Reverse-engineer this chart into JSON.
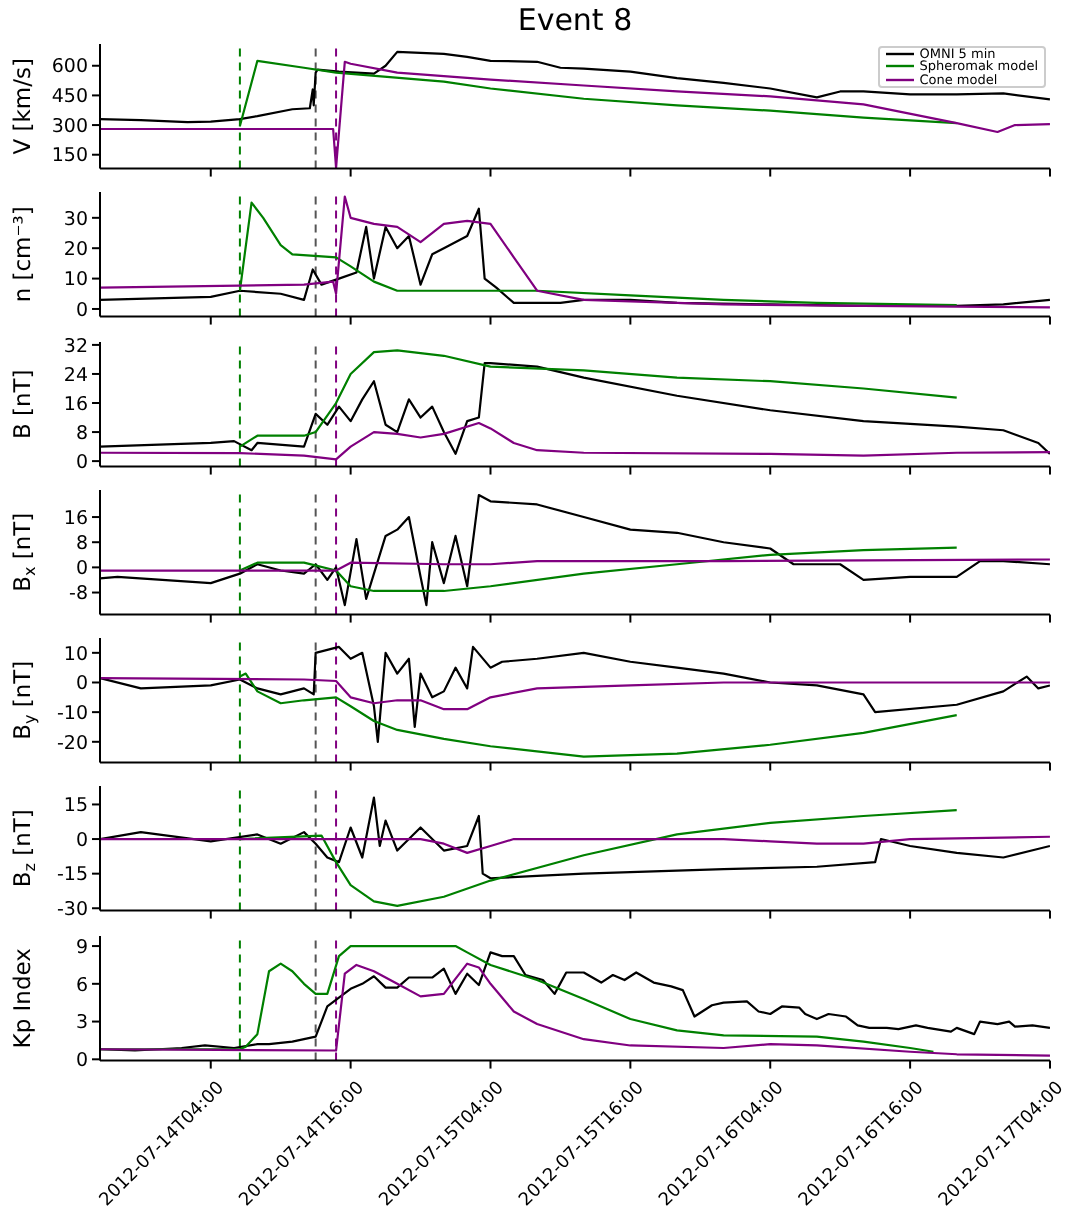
{
  "chart_data": [
    {
      "type": "line",
      "title": "Event 8",
      "ylabel": "V [km/s]",
      "legend": "top right",
      "tick_labels": "y",
      "xlim": [
        "2012-07-13T18:30",
        "2012-07-17T04:00"
      ],
      "xticks": [
        "2012-07-14T04:00",
        "2012-07-14T16:00",
        "2012-07-15T04:00",
        "2012-07-15T16:00",
        "2012-07-16T04:00",
        "2012-07-16T16:00",
        "2012-07-17T04:00"
      ],
      "ylim": [
        80,
        710
      ],
      "yticks": [
        150,
        300,
        450,
        600
      ],
      "ref_lines": [
        {
          "axis": "x",
          "value": "2012-07-14T06:30",
          "color": "#008000",
          "line_style": "dashed"
        },
        {
          "axis": "x",
          "value": "2012-07-14T13:00",
          "color": "#555555",
          "line_style": "dashed"
        },
        {
          "axis": "x",
          "value": "2012-07-14T14:45",
          "color": "#800080",
          "line_style": "dashed"
        }
      ],
      "series": [
        {
          "name": "OMNI 5 min",
          "color": "#000000",
          "x": [
            "2012-07-13T18:30",
            "2012-07-13T22:00",
            "2012-07-14T02:00",
            "2012-07-14T04:00",
            "2012-07-14T06:30",
            "2012-07-14T08:00",
            "2012-07-14T11:00",
            "2012-07-14T12:30",
            "2012-07-14T12:45",
            "2012-07-14T12:50",
            "2012-07-14T13:00",
            "2012-07-14T13:10",
            "2012-07-14T15:00",
            "2012-07-14T18:00",
            "2012-07-14T19:00",
            "2012-07-14T20:00",
            "2012-07-14T22:00",
            "2012-07-15T00:00",
            "2012-07-15T02:00",
            "2012-07-15T04:00",
            "2012-07-15T08:00",
            "2012-07-15T10:00",
            "2012-07-15T12:00",
            "2012-07-15T16:00",
            "2012-07-15T20:00",
            "2012-07-16T00:00",
            "2012-07-16T04:00",
            "2012-07-16T08:00",
            "2012-07-16T10:00",
            "2012-07-16T12:00",
            "2012-07-16T16:00",
            "2012-07-16T20:00",
            "2012-07-17T00:00",
            "2012-07-17T04:00"
          ],
          "values": [
            330,
            325,
            315,
            317,
            330,
            345,
            380,
            385,
            480,
            400,
            565,
            580,
            570,
            560,
            600,
            670,
            665,
            660,
            645,
            625,
            620,
            590,
            585,
            570,
            537,
            513,
            485,
            440,
            470,
            470,
            455,
            455,
            460,
            430
          ]
        },
        {
          "name": "Spheromak model",
          "color": "#008000",
          "x": [
            "2012-07-14T06:30",
            "2012-07-14T08:00",
            "2012-07-14T12:00",
            "2012-07-14T14:45",
            "2012-07-15T00:00",
            "2012-07-15T04:00",
            "2012-07-15T12:00",
            "2012-07-15T20:00",
            "2012-07-16T04:00",
            "2012-07-16T12:00",
            "2012-07-16T20:00"
          ],
          "values": [
            295,
            625,
            590,
            565,
            520,
            485,
            433,
            400,
            373,
            338,
            310
          ]
        },
        {
          "name": "Cone model",
          "color": "#800080",
          "x": [
            "2012-07-13T18:30",
            "2012-07-14T14:30",
            "2012-07-14T14:45",
            "2012-07-14T15:30",
            "2012-07-14T16:00",
            "2012-07-14T20:00",
            "2012-07-15T00:00",
            "2012-07-15T04:00",
            "2012-07-15T12:00",
            "2012-07-15T20:00",
            "2012-07-16T04:00",
            "2012-07-16T12:00",
            "2012-07-16T20:00",
            "2012-07-16T23:30",
            "2012-07-17T01:00",
            "2012-07-17T04:00"
          ],
          "values": [
            280,
            280,
            85,
            620,
            610,
            565,
            548,
            530,
            500,
            470,
            445,
            405,
            310,
            265,
            300,
            305
          ]
        }
      ]
    },
    {
      "type": "line",
      "ylabel": "n [cm⁻³]",
      "tick_labels": "y",
      "xlim": [
        "2012-07-13T18:30",
        "2012-07-17T04:00"
      ],
      "xticks": [
        "2012-07-14T04:00",
        "2012-07-14T16:00",
        "2012-07-15T04:00",
        "2012-07-15T16:00",
        "2012-07-16T04:00",
        "2012-07-16T16:00",
        "2012-07-17T04:00"
      ],
      "ylim": [
        -2.5,
        38.5
      ],
      "yticks": [
        0,
        10,
        20,
        30
      ],
      "ref_lines": [
        {
          "axis": "x",
          "value": "2012-07-14T06:30",
          "color": "#008000",
          "line_style": "dashed"
        },
        {
          "axis": "x",
          "value": "2012-07-14T13:00",
          "color": "#555555",
          "line_style": "dashed"
        },
        {
          "axis": "x",
          "value": "2012-07-14T14:45",
          "color": "#800080",
          "line_style": "dashed"
        }
      ],
      "series": [
        {
          "color": "#000000",
          "x": [
            "2012-07-13T18:30",
            "2012-07-14T04:00",
            "2012-07-14T06:30",
            "2012-07-14T10:00",
            "2012-07-14T12:00",
            "2012-07-14T12:45",
            "2012-07-14T13:30",
            "2012-07-14T15:00",
            "2012-07-14T16:30",
            "2012-07-14T17:20",
            "2012-07-14T18:00",
            "2012-07-14T19:00",
            "2012-07-14T20:00",
            "2012-07-14T21:00",
            "2012-07-14T22:00",
            "2012-07-14T23:00",
            "2012-07-15T00:00",
            "2012-07-15T02:00",
            "2012-07-15T03:00",
            "2012-07-15T03:30",
            "2012-07-15T04:30",
            "2012-07-15T06:00",
            "2012-07-15T10:00",
            "2012-07-15T12:00",
            "2012-07-15T16:00",
            "2012-07-15T20:00",
            "2012-07-16T04:00",
            "2012-07-16T12:00",
            "2012-07-16T20:00",
            "2012-07-17T00:00",
            "2012-07-17T04:00"
          ],
          "values": [
            3,
            4,
            6,
            5,
            3,
            13,
            8,
            10,
            12,
            27,
            10,
            27,
            20,
            24,
            8,
            18,
            20,
            24,
            33,
            10,
            7,
            2,
            2,
            3,
            3,
            2,
            1.5,
            1,
            1,
            1.5,
            3
          ]
        },
        {
          "color": "#008000",
          "x": [
            "2012-07-14T06:30",
            "2012-07-14T07:30",
            "2012-07-14T08:30",
            "2012-07-14T10:00",
            "2012-07-14T11:00",
            "2012-07-14T14:45",
            "2012-07-14T16:00",
            "2012-07-14T18:00",
            "2012-07-14T20:00",
            "2012-07-15T00:00",
            "2012-07-15T08:00",
            "2012-07-15T16:00",
            "2012-07-16T00:00",
            "2012-07-16T08:00",
            "2012-07-16T16:00",
            "2012-07-16T20:00"
          ],
          "values": [
            6,
            35,
            30,
            21,
            18,
            17,
            14,
            9,
            6,
            6,
            6,
            4.5,
            3,
            2,
            1.5,
            1.3
          ]
        },
        {
          "color": "#800080",
          "x": [
            "2012-07-13T18:30",
            "2012-07-14T12:00",
            "2012-07-14T14:30",
            "2012-07-14T14:45",
            "2012-07-14T15:30",
            "2012-07-14T16:00",
            "2012-07-14T18:00",
            "2012-07-14T20:00",
            "2012-07-14T22:00",
            "2012-07-15T00:00",
            "2012-07-15T02:00",
            "2012-07-15T04:00",
            "2012-07-15T06:00",
            "2012-07-15T08:00",
            "2012-07-15T12:00",
            "2012-07-15T16:00",
            "2012-07-16T00:00",
            "2012-07-16T12:00",
            "2012-07-17T04:00"
          ],
          "values": [
            7,
            8,
            9,
            5,
            37,
            30,
            28,
            27,
            22,
            28,
            29,
            28,
            17,
            6,
            3,
            2.5,
            1.5,
            1,
            0.5
          ]
        }
      ]
    },
    {
      "type": "line",
      "ylabel": "B [nT]",
      "tick_labels": "y",
      "xlim": [
        "2012-07-13T18:30",
        "2012-07-17T04:00"
      ],
      "xticks": [
        "2012-07-14T04:00",
        "2012-07-14T16:00",
        "2012-07-15T04:00",
        "2012-07-15T16:00",
        "2012-07-16T04:00",
        "2012-07-16T16:00",
        "2012-07-17T04:00"
      ],
      "ylim": [
        -1.5,
        32.8
      ],
      "yticks": [
        0,
        8,
        16,
        24,
        32
      ],
      "ref_lines": [
        {
          "axis": "x",
          "value": "2012-07-14T06:30",
          "color": "#008000",
          "line_style": "dashed"
        },
        {
          "axis": "x",
          "value": "2012-07-14T13:00",
          "color": "#555555",
          "line_style": "dashed"
        },
        {
          "axis": "x",
          "value": "2012-07-14T14:45",
          "color": "#800080",
          "line_style": "dashed"
        }
      ],
      "series": [
        {
          "color": "#000000",
          "x": [
            "2012-07-13T18:30",
            "2012-07-14T04:00",
            "2012-07-14T06:00",
            "2012-07-14T07:30",
            "2012-07-14T08:00",
            "2012-07-14T12:00",
            "2012-07-14T13:00",
            "2012-07-14T14:00",
            "2012-07-14T15:00",
            "2012-07-14T16:00",
            "2012-07-14T17:00",
            "2012-07-14T18:00",
            "2012-07-14T19:00",
            "2012-07-14T20:00",
            "2012-07-14T21:00",
            "2012-07-14T22:00",
            "2012-07-14T23:00",
            "2012-07-15T00:00",
            "2012-07-15T01:00",
            "2012-07-15T02:00",
            "2012-07-15T03:00",
            "2012-07-15T03:30",
            "2012-07-15T04:00",
            "2012-07-15T08:00",
            "2012-07-15T12:00",
            "2012-07-15T20:00",
            "2012-07-16T04:00",
            "2012-07-16T12:00",
            "2012-07-16T20:00",
            "2012-07-17T00:00",
            "2012-07-17T03:00",
            "2012-07-17T04:00"
          ],
          "values": [
            4,
            5,
            5.5,
            3,
            5,
            4,
            13,
            10,
            15,
            11,
            17,
            22,
            10,
            8,
            17,
            12,
            15,
            8,
            2,
            11,
            12,
            27,
            27,
            26,
            23,
            18,
            14,
            11,
            9.5,
            8.5,
            5,
            2
          ]
        },
        {
          "color": "#008000",
          "x": [
            "2012-07-14T06:30",
            "2012-07-14T08:00",
            "2012-07-14T10:00",
            "2012-07-14T12:00",
            "2012-07-14T13:00",
            "2012-07-14T14:45",
            "2012-07-14T16:00",
            "2012-07-14T18:00",
            "2012-07-14T20:00",
            "2012-07-15T00:00",
            "2012-07-15T04:00",
            "2012-07-15T12:00",
            "2012-07-15T20:00",
            "2012-07-16T04:00",
            "2012-07-16T12:00",
            "2012-07-16T20:00"
          ],
          "values": [
            4,
            7,
            7,
            7,
            8,
            16,
            24,
            30,
            30.5,
            29,
            26,
            25,
            23,
            22,
            20,
            17.5
          ]
        },
        {
          "color": "#800080",
          "x": [
            "2012-07-13T18:30",
            "2012-07-14T06:30",
            "2012-07-14T12:00",
            "2012-07-14T14:45",
            "2012-07-14T16:00",
            "2012-07-14T18:00",
            "2012-07-14T20:00",
            "2012-07-14T22:00",
            "2012-07-15T00:00",
            "2012-07-15T03:00",
            "2012-07-15T04:00",
            "2012-07-15T06:00",
            "2012-07-15T08:00",
            "2012-07-15T12:00",
            "2012-07-16T04:00",
            "2012-07-16T12:00",
            "2012-07-16T20:00",
            "2012-07-17T04:00"
          ],
          "values": [
            2.3,
            2.2,
            1.5,
            0.5,
            4,
            8,
            7.5,
            6.5,
            7.5,
            10.5,
            9,
            5,
            3,
            2.3,
            2,
            1.5,
            2.3,
            2.5
          ]
        }
      ]
    },
    {
      "type": "line",
      "ylabel": "B$_{x}$ [nT]",
      "tick_labels": "y",
      "xlim": [
        "2012-07-13T18:30",
        "2012-07-17T04:00"
      ],
      "xticks": [
        "2012-07-14T04:00",
        "2012-07-14T16:00",
        "2012-07-15T04:00",
        "2012-07-15T16:00",
        "2012-07-16T04:00",
        "2012-07-16T16:00",
        "2012-07-17T04:00"
      ],
      "ylim": [
        -15,
        24.6
      ],
      "yticks": [
        -8,
        0,
        8,
        16
      ],
      "ref_lines": [
        {
          "axis": "x",
          "value": "2012-07-14T06:30",
          "color": "#008000",
          "line_style": "dashed"
        },
        {
          "axis": "x",
          "value": "2012-07-14T13:00",
          "color": "#555555",
          "line_style": "dashed"
        },
        {
          "axis": "x",
          "value": "2012-07-14T14:45",
          "color": "#800080",
          "line_style": "dashed"
        }
      ],
      "series": [
        {
          "color": "#000000",
          "x": [
            "2012-07-13T18:30",
            "2012-07-13T20:00",
            "2012-07-14T04:00",
            "2012-07-14T06:30",
            "2012-07-14T08:00",
            "2012-07-14T10:00",
            "2012-07-14T12:00",
            "2012-07-14T13:00",
            "2012-07-14T14:00",
            "2012-07-14T14:45",
            "2012-07-14T15:30",
            "2012-07-14T16:30",
            "2012-07-14T17:20",
            "2012-07-14T18:00",
            "2012-07-14T19:00",
            "2012-07-14T20:00",
            "2012-07-14T21:00",
            "2012-07-14T22:00",
            "2012-07-14T22:30",
            "2012-07-14T23:00",
            "2012-07-15T00:00",
            "2012-07-15T01:00",
            "2012-07-15T02:00",
            "2012-07-15T03:00",
            "2012-07-15T04:00",
            "2012-07-15T08:00",
            "2012-07-15T12:00",
            "2012-07-15T16:00",
            "2012-07-15T20:00",
            "2012-07-16T00:00",
            "2012-07-16T04:00",
            "2012-07-16T06:00",
            "2012-07-16T10:00",
            "2012-07-16T12:00",
            "2012-07-16T16:00",
            "2012-07-16T20:00",
            "2012-07-16T22:00",
            "2012-07-17T00:00",
            "2012-07-17T04:00"
          ],
          "values": [
            -3.5,
            -3,
            -5,
            -2,
            1,
            -1,
            -2,
            1,
            -4,
            0,
            -12,
            9,
            -10,
            -2,
            10,
            12,
            16,
            -3,
            -12,
            8,
            -5,
            10,
            -6,
            23,
            21,
            20,
            16,
            12,
            11,
            8,
            6,
            1,
            1,
            -4,
            -3,
            -3,
            2,
            2,
            1
          ]
        },
        {
          "color": "#008000",
          "x": [
            "2012-07-14T06:30",
            "2012-07-14T08:00",
            "2012-07-14T12:00",
            "2012-07-14T14:45",
            "2012-07-14T16:00",
            "2012-07-14T18:00",
            "2012-07-15T00:00",
            "2012-07-15T04:00",
            "2012-07-15T12:00",
            "2012-07-15T20:00",
            "2012-07-16T04:00",
            "2012-07-16T12:00",
            "2012-07-16T20:00"
          ],
          "values": [
            -1,
            1.5,
            1.5,
            -1,
            -6,
            -7.5,
            -7.5,
            -6,
            -2,
            1,
            4,
            5.5,
            6.3
          ]
        },
        {
          "color": "#800080",
          "x": [
            "2012-07-13T18:30",
            "2012-07-14T14:45",
            "2012-07-14T16:00",
            "2012-07-15T00:00",
            "2012-07-15T04:00",
            "2012-07-15T08:00",
            "2012-07-16T00:00",
            "2012-07-17T04:00"
          ],
          "values": [
            -1,
            -1,
            1.5,
            1,
            1,
            2,
            2,
            2.5
          ]
        }
      ]
    },
    {
      "type": "line",
      "ylabel": "B$_{y}$ [nT]",
      "tick_labels": "y",
      "xlim": [
        "2012-07-13T18:30",
        "2012-07-17T04:00"
      ],
      "xticks": [
        "2012-07-14T04:00",
        "2012-07-14T16:00",
        "2012-07-15T04:00",
        "2012-07-15T16:00",
        "2012-07-16T04:00",
        "2012-07-16T16:00",
        "2012-07-17T04:00"
      ],
      "ylim": [
        -27,
        15
      ],
      "yticks": [
        -20,
        -10,
        0,
        10
      ],
      "ref_lines": [
        {
          "axis": "x",
          "value": "2012-07-14T06:30",
          "color": "#008000",
          "line_style": "dashed"
        },
        {
          "axis": "x",
          "value": "2012-07-14T13:00",
          "color": "#555555",
          "line_style": "dashed"
        },
        {
          "axis": "x",
          "value": "2012-07-14T14:45",
          "color": "#800080",
          "line_style": "dashed"
        }
      ],
      "series": [
        {
          "color": "#000000",
          "x": [
            "2012-07-13T18:30",
            "2012-07-13T22:00",
            "2012-07-14T04:00",
            "2012-07-14T06:30",
            "2012-07-14T08:00",
            "2012-07-14T10:00",
            "2012-07-14T12:00",
            "2012-07-14T12:50",
            "2012-07-14T13:00",
            "2012-07-14T15:00",
            "2012-07-14T16:00",
            "2012-07-14T17:00",
            "2012-07-14T18:00",
            "2012-07-14T18:20",
            "2012-07-14T19:00",
            "2012-07-14T20:00",
            "2012-07-14T21:00",
            "2012-07-14T21:30",
            "2012-07-14T22:00",
            "2012-07-14T23:00",
            "2012-07-15T00:00",
            "2012-07-15T01:00",
            "2012-07-15T02:00",
            "2012-07-15T02:30",
            "2012-07-15T04:00",
            "2012-07-15T05:00",
            "2012-07-15T08:00",
            "2012-07-15T12:00",
            "2012-07-15T16:00",
            "2012-07-15T20:00",
            "2012-07-16T00:00",
            "2012-07-16T04:00",
            "2012-07-16T08:00",
            "2012-07-16T12:00",
            "2012-07-16T13:00",
            "2012-07-16T20:00",
            "2012-07-17T00:00",
            "2012-07-17T02:00",
            "2012-07-17T03:00",
            "2012-07-17T04:00"
          ],
          "values": [
            1.5,
            -2,
            -1,
            1,
            -2,
            -4,
            -2,
            -4,
            10,
            12,
            8,
            10,
            -8,
            -20,
            10,
            3,
            8,
            -15,
            3,
            -5,
            -3,
            5,
            -2,
            12,
            5,
            7,
            8,
            10,
            7,
            5,
            3,
            0,
            -1,
            -4,
            -10,
            -7.5,
            -3,
            2,
            -2,
            -1
          ]
        },
        {
          "color": "#008000",
          "x": [
            "2012-07-14T06:30",
            "2012-07-14T07:00",
            "2012-07-14T08:00",
            "2012-07-14T10:00",
            "2012-07-14T12:00",
            "2012-07-14T14:45",
            "2012-07-14T16:00",
            "2012-07-14T18:00",
            "2012-07-14T20:00",
            "2012-07-15T00:00",
            "2012-07-15T04:00",
            "2012-07-15T12:00",
            "2012-07-15T20:00",
            "2012-07-16T04:00",
            "2012-07-16T12:00",
            "2012-07-16T20:00"
          ],
          "values": [
            2,
            3,
            -3,
            -7,
            -6,
            -5,
            -8,
            -13,
            -16,
            -19,
            -21.5,
            -25,
            -24,
            -21,
            -17,
            -11
          ]
        },
        {
          "color": "#800080",
          "x": [
            "2012-07-13T18:30",
            "2012-07-14T12:00",
            "2012-07-14T14:45",
            "2012-07-14T16:00",
            "2012-07-14T18:00",
            "2012-07-14T20:00",
            "2012-07-14T22:00",
            "2012-07-15T00:00",
            "2012-07-15T02:00",
            "2012-07-15T04:00",
            "2012-07-15T08:00",
            "2012-07-15T16:00",
            "2012-07-16T00:00",
            "2012-07-17T04:00"
          ],
          "values": [
            1.5,
            1,
            0.5,
            -5,
            -7,
            -6,
            -6,
            -9,
            -9,
            -5,
            -2,
            -1,
            0,
            0
          ]
        }
      ]
    },
    {
      "type": "line",
      "ylabel": "B$_{z}$ [nT]",
      "tick_labels": "y",
      "xlim": [
        "2012-07-13T18:30",
        "2012-07-17T04:00"
      ],
      "xticks": [
        "2012-07-14T04:00",
        "2012-07-14T16:00",
        "2012-07-15T04:00",
        "2012-07-15T16:00",
        "2012-07-16T04:00",
        "2012-07-16T16:00",
        "2012-07-17T04:00"
      ],
      "ylim": [
        -31,
        23
      ],
      "yticks": [
        -30,
        -15,
        0,
        15
      ],
      "ref_lines": [
        {
          "axis": "x",
          "value": "2012-07-14T06:30",
          "color": "#008000",
          "line_style": "dashed"
        },
        {
          "axis": "x",
          "value": "2012-07-14T13:00",
          "color": "#555555",
          "line_style": "dashed"
        },
        {
          "axis": "x",
          "value": "2012-07-14T14:45",
          "color": "#800080",
          "line_style": "dashed"
        }
      ],
      "series": [
        {
          "color": "#000000",
          "x": [
            "2012-07-13T18:30",
            "2012-07-13T22:00",
            "2012-07-14T04:00",
            "2012-07-14T08:00",
            "2012-07-14T10:00",
            "2012-07-14T12:00",
            "2012-07-14T13:00",
            "2012-07-14T14:00",
            "2012-07-14T15:00",
            "2012-07-14T16:00",
            "2012-07-14T17:00",
            "2012-07-14T18:00",
            "2012-07-14T18:30",
            "2012-07-14T19:00",
            "2012-07-14T20:00",
            "2012-07-14T22:00",
            "2012-07-15T00:00",
            "2012-07-15T02:00",
            "2012-07-15T03:00",
            "2012-07-15T03:20",
            "2012-07-15T04:00",
            "2012-07-15T08:00",
            "2012-07-15T12:00",
            "2012-07-16T00:00",
            "2012-07-16T08:00",
            "2012-07-16T13:00",
            "2012-07-16T13:30",
            "2012-07-16T16:00",
            "2012-07-16T20:00",
            "2012-07-17T00:00",
            "2012-07-17T04:00"
          ],
          "values": [
            0,
            3,
            -1,
            2,
            -2,
            3,
            -2,
            -8,
            -10,
            5,
            -8,
            18,
            -3,
            8,
            -5,
            5,
            -5,
            -3,
            10,
            -15,
            -17,
            -16,
            -15,
            -13,
            -12,
            -10,
            0,
            -3,
            -6,
            -8,
            -3
          ]
        },
        {
          "color": "#008000",
          "x": [
            "2012-07-14T06:30",
            "2012-07-14T13:30",
            "2012-07-14T14:45",
            "2012-07-14T16:00",
            "2012-07-14T18:00",
            "2012-07-14T20:00",
            "2012-07-15T00:00",
            "2012-07-15T04:00",
            "2012-07-15T12:00",
            "2012-07-15T20:00",
            "2012-07-16T04:00",
            "2012-07-16T12:00",
            "2012-07-16T20:00"
          ],
          "values": [
            0,
            1.5,
            -10,
            -20,
            -27,
            -29,
            -25,
            -18,
            -7,
            2,
            7,
            10,
            12.5
          ]
        },
        {
          "color": "#800080",
          "x": [
            "2012-07-13T18:30",
            "2012-07-14T22:00",
            "2012-07-15T00:00",
            "2012-07-15T02:00",
            "2012-07-15T04:00",
            "2012-07-15T06:00",
            "2012-07-16T00:00",
            "2012-07-16T04:00",
            "2012-07-16T08:00",
            "2012-07-16T12:00",
            "2012-07-16T16:00",
            "2012-07-17T04:00"
          ],
          "values": [
            0,
            0,
            -2,
            -6,
            -3,
            0,
            0,
            -1,
            -2,
            -2,
            0,
            1
          ]
        }
      ]
    },
    {
      "type": "line",
      "ylabel": "Kp Index",
      "xlim": [
        "2012-07-13T18:30",
        "2012-07-17T04:00"
      ],
      "xticks": [
        "2012-07-14T04:00",
        "2012-07-14T16:00",
        "2012-07-15T04:00",
        "2012-07-15T16:00",
        "2012-07-16T04:00",
        "2012-07-16T16:00",
        "2012-07-17T04:00"
      ],
      "ylim": [
        -0.1,
        9.8
      ],
      "yticks": [
        0,
        3,
        6,
        9
      ],
      "ref_lines": [
        {
          "axis": "x",
          "value": "2012-07-14T06:30",
          "color": "#008000",
          "line_style": "dashed"
        },
        {
          "axis": "x",
          "value": "2012-07-14T13:00",
          "color": "#555555",
          "line_style": "dashed"
        },
        {
          "axis": "x",
          "value": "2012-07-14T14:45",
          "color": "#800080",
          "line_style": "dashed"
        }
      ],
      "series": [
        {
          "color": "#000000",
          "x": [
            "2012-07-13T18:30",
            "2012-07-13T21:30",
            "2012-07-14T01:30",
            "2012-07-14T03:30",
            "2012-07-14T06:00",
            "2012-07-14T08:00",
            "2012-07-14T09:00",
            "2012-07-14T11:00",
            "2012-07-14T13:00",
            "2012-07-14T14:00",
            "2012-07-14T16:00",
            "2012-07-14T17:00",
            "2012-07-14T18:00",
            "2012-07-14T19:00",
            "2012-07-14T20:00",
            "2012-07-14T21:00",
            "2012-07-14T23:00",
            "2012-07-15T00:00",
            "2012-07-15T01:00",
            "2012-07-15T02:00",
            "2012-07-15T03:00",
            "2012-07-15T04:00",
            "2012-07-15T05:00",
            "2012-07-15T06:00",
            "2012-07-15T07:00",
            "2012-07-15T08:30",
            "2012-07-15T09:30",
            "2012-07-15T10:30",
            "2012-07-15T12:00",
            "2012-07-15T13:30",
            "2012-07-15T14:30",
            "2012-07-15T15:30",
            "2012-07-15T16:30",
            "2012-07-15T18:00",
            "2012-07-15T19:30",
            "2012-07-15T20:30",
            "2012-07-15T21:30",
            "2012-07-15T23:00",
            "2012-07-16T00:00",
            "2012-07-16T02:00",
            "2012-07-16T03:00",
            "2012-07-16T04:00",
            "2012-07-16T05:00",
            "2012-07-16T06:30",
            "2012-07-16T07:00",
            "2012-07-16T08:00",
            "2012-07-16T09:00",
            "2012-07-16T10:30",
            "2012-07-16T11:30",
            "2012-07-16T12:30",
            "2012-07-16T14:00",
            "2012-07-16T15:00",
            "2012-07-16T16:30",
            "2012-07-16T17:30",
            "2012-07-16T19:30",
            "2012-07-16T20:00",
            "2012-07-16T21:30",
            "2012-07-16T22:00",
            "2012-07-16T23:30",
            "2012-07-17T00:30",
            "2012-07-17T01:00",
            "2012-07-17T02:30",
            "2012-07-17T04:00"
          ],
          "values": [
            0.8,
            0.7,
            0.9,
            1.1,
            0.9,
            1.2,
            1.2,
            1.4,
            1.8,
            4.2,
            5.6,
            6.0,
            6.6,
            5.7,
            5.7,
            6.5,
            6.5,
            7.2,
            5.2,
            6.8,
            5.9,
            8.5,
            8.2,
            8.2,
            6.7,
            6.3,
            5.2,
            6.9,
            6.9,
            6.1,
            6.7,
            6.3,
            6.9,
            6.1,
            5.8,
            5.5,
            3.4,
            4.3,
            4.5,
            4.6,
            3.8,
            3.6,
            4.2,
            4.1,
            3.6,
            3.2,
            3.6,
            3.4,
            2.7,
            2.5,
            2.5,
            2.4,
            2.7,
            2.5,
            2.2,
            2.5,
            2.0,
            3.0,
            2.8,
            3.0,
            2.6,
            2.7,
            2.5
          ]
        },
        {
          "color": "#008000",
          "x": [
            "2012-07-13T18:30",
            "2012-07-14T06:30",
            "2012-07-14T07:00",
            "2012-07-14T08:00",
            "2012-07-14T09:00",
            "2012-07-14T10:00",
            "2012-07-14T11:00",
            "2012-07-14T12:00",
            "2012-07-14T13:00",
            "2012-07-14T14:00",
            "2012-07-14T15:00",
            "2012-07-14T16:00",
            "2012-07-15T01:00",
            "2012-07-15T02:00",
            "2012-07-15T04:00",
            "2012-07-15T08:00",
            "2012-07-15T12:00",
            "2012-07-15T16:00",
            "2012-07-15T20:00",
            "2012-07-16T00:00",
            "2012-07-16T08:00",
            "2012-07-16T12:00",
            "2012-07-16T16:00",
            "2012-07-16T18:00"
          ],
          "values": [
            0.8,
            0.8,
            1.0,
            2.0,
            7.0,
            7.6,
            7.0,
            6.0,
            5.2,
            5.2,
            8.2,
            9,
            9,
            8.5,
            7.5,
            6.3,
            4.8,
            3.2,
            2.3,
            1.9,
            1.8,
            1.4,
            0.9,
            0.6
          ]
        },
        {
          "color": "#800080",
          "x": [
            "2012-07-13T18:30",
            "2012-07-14T14:45",
            "2012-07-14T15:30",
            "2012-07-14T16:30",
            "2012-07-14T18:00",
            "2012-07-14T20:00",
            "2012-07-14T22:00",
            "2012-07-15T00:00",
            "2012-07-15T02:00",
            "2012-07-15T03:00",
            "2012-07-15T04:00",
            "2012-07-15T06:00",
            "2012-07-15T08:00",
            "2012-07-15T12:00",
            "2012-07-15T16:00",
            "2012-07-16T00:00",
            "2012-07-16T04:00",
            "2012-07-16T08:00",
            "2012-07-16T16:00",
            "2012-07-16T20:00",
            "2012-07-17T04:00"
          ],
          "values": [
            0.8,
            0.7,
            6.8,
            7.5,
            7.0,
            6.0,
            5.0,
            5.2,
            7.6,
            7.3,
            6.0,
            3.8,
            2.8,
            1.6,
            1.1,
            0.9,
            1.2,
            1.1,
            0.6,
            0.4,
            0.3
          ]
        }
      ]
    }
  ]
}
